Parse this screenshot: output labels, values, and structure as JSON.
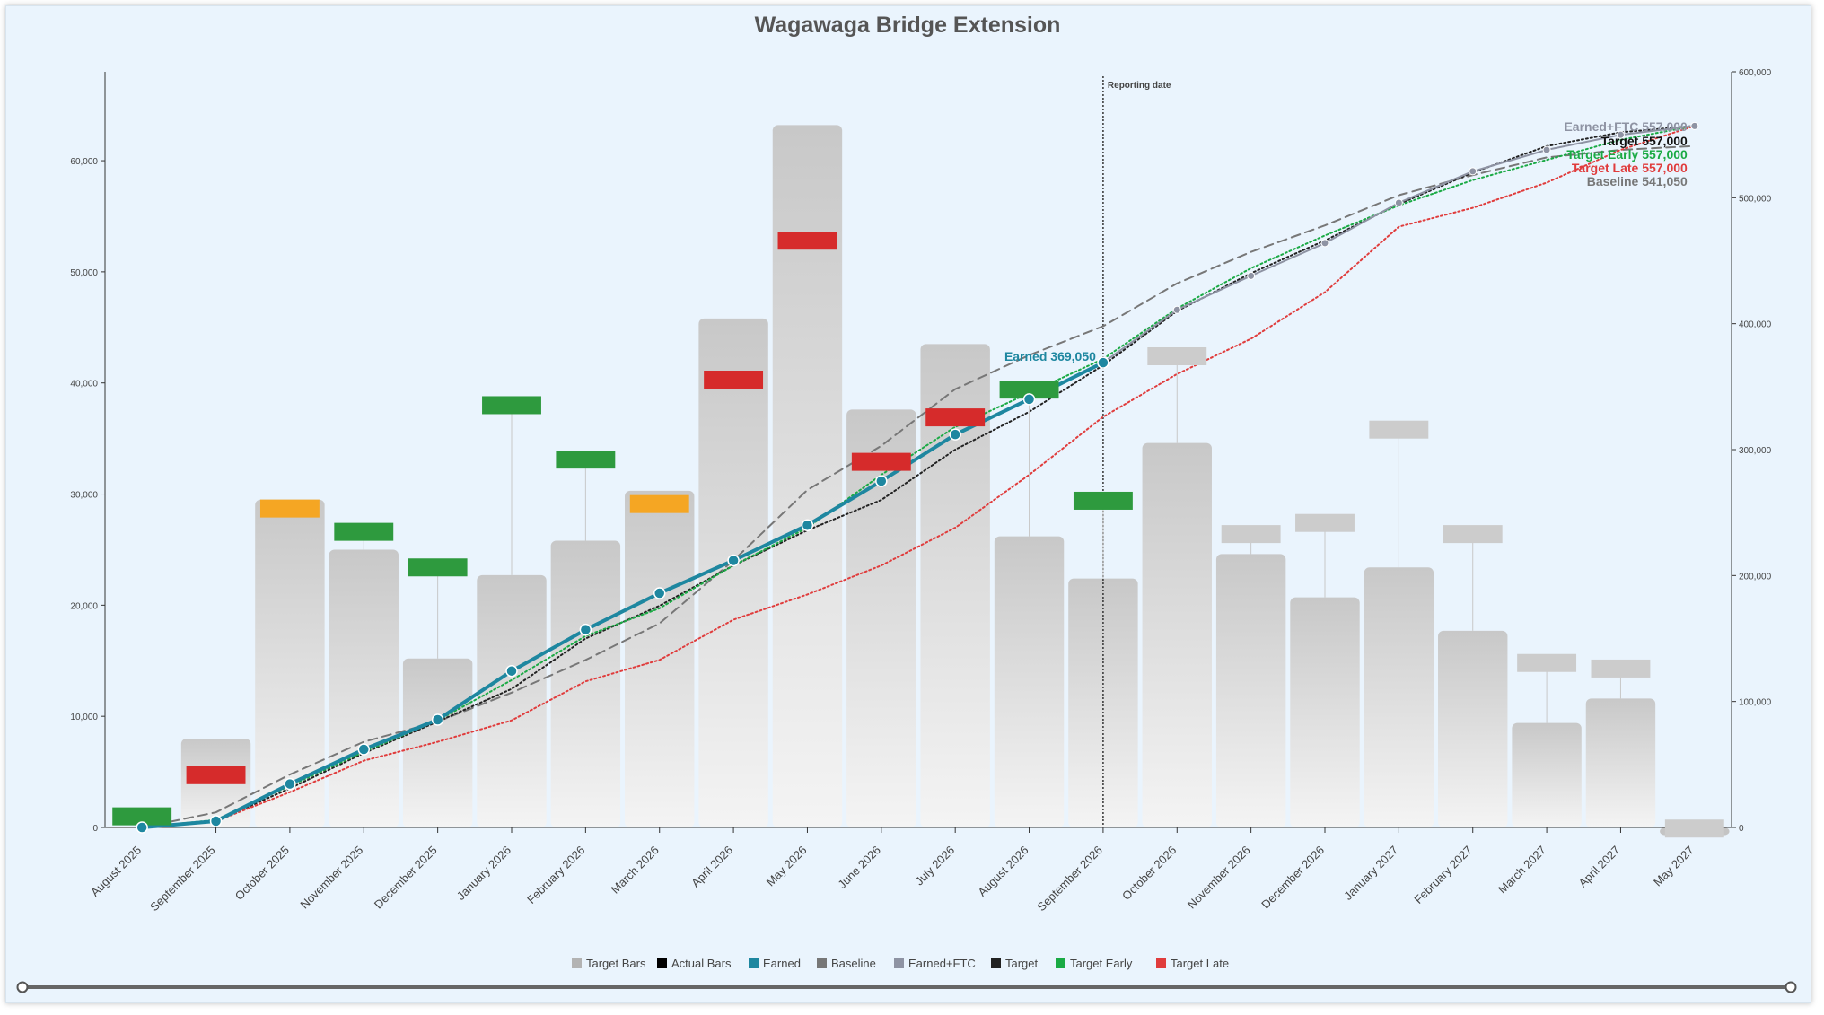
{
  "chart_data": {
    "type": "bar",
    "title": "Wagawaga Bridge Extension",
    "categories": [
      "August 2025",
      "September 2025",
      "October 2025",
      "November 2025",
      "December 2025",
      "January 2026",
      "February 2026",
      "March 2026",
      "April 2026",
      "May 2026",
      "June 2026",
      "July 2026",
      "August 2026",
      "September 2026",
      "October 2026",
      "November 2026",
      "December 2026",
      "January 2027",
      "February 2027",
      "March 2027",
      "April 2027",
      "May 2027"
    ],
    "y_left": {
      "range": [
        0,
        68000
      ],
      "ticks": [
        0,
        10000,
        20000,
        30000,
        40000,
        50000,
        60000
      ],
      "tick_labels": [
        "0",
        "10,000",
        "20,000",
        "30,000",
        "40,000",
        "50,000",
        "60,000"
      ]
    },
    "y_right": {
      "range": [
        0,
        600000
      ],
      "ticks": [
        0,
        100000,
        200000,
        300000,
        400000,
        500000,
        600000
      ],
      "tick_labels": [
        "0",
        "100,000",
        "200,000",
        "300,000",
        "400,000",
        "500,000",
        "600,000"
      ]
    },
    "bar_series": [
      {
        "name": "Target Bars",
        "color": "#b3b3b3",
        "values": [
          0,
          8000,
          29500,
          25000,
          15200,
          22700,
          25800,
          30300,
          45800,
          63200,
          37600,
          43500,
          26200,
          22400,
          34600,
          24600,
          20700,
          23400,
          17700,
          9400,
          11600,
          -700
        ]
      },
      {
        "name": "Actual Bars",
        "color": "#000000",
        "values": [
          1000,
          4700,
          28700,
          26600,
          23400,
          38000,
          33100,
          29100,
          40300,
          52800,
          32900,
          36900,
          39400,
          29400,
          42400,
          26400,
          27400,
          35800,
          26400,
          14800,
          14300,
          -100
        ],
        "marker_colors": [
          "#2e9a3e",
          "#d62b2b",
          "#f5a623",
          "#2e9a3e",
          "#2e9a3e",
          "#2e9a3e",
          "#2e9a3e",
          "#f5a623",
          "#d62b2b",
          "#d62b2b",
          "#d62b2b",
          "#d62b2b",
          "#2e9a3e",
          "#2e9a3e",
          "#cccccc",
          "#cccccc",
          "#cccccc",
          "#cccccc",
          "#cccccc",
          "#cccccc",
          "#cccccc",
          "#cccccc"
        ]
      }
    ],
    "line_series": [
      {
        "name": "Earned",
        "color": "#1e87a0",
        "style": "solid",
        "axis": "right",
        "values": [
          0,
          5000,
          34500,
          62000,
          85500,
          124200,
          157000,
          186000,
          212000,
          240000,
          275000,
          312000,
          340000,
          369050,
          null,
          null,
          null,
          null,
          null,
          null,
          null,
          null
        ]
      },
      {
        "name": "Baseline",
        "color": "#777777",
        "style": "dashed",
        "axis": "right",
        "values": [
          0,
          12000,
          42000,
          68000,
          84000,
          107000,
          133000,
          162000,
          212000,
          268000,
          303000,
          348000,
          375000,
          398000,
          432000,
          457000,
          478000,
          502000,
          518000,
          532000,
          538000,
          541050
        ]
      },
      {
        "name": "Earned+FTC",
        "color": "#8e93a3",
        "style": "solid",
        "axis": "right",
        "values": [
          null,
          null,
          null,
          null,
          null,
          null,
          null,
          null,
          null,
          null,
          null,
          null,
          null,
          369050,
          411000,
          438000,
          464000,
          496000,
          521000,
          538000,
          550000,
          557000
        ]
      },
      {
        "name": "Target",
        "color": "#222222",
        "style": "dotted",
        "axis": "right",
        "values": [
          0,
          5000,
          31000,
          59000,
          84000,
          110000,
          150000,
          176000,
          208000,
          236000,
          260000,
          300000,
          330000,
          367000,
          410000,
          440000,
          466000,
          495000,
          520000,
          541000,
          552000,
          557000
        ]
      },
      {
        "name": "Target Early",
        "color": "#1aaa44",
        "style": "dotted",
        "axis": "right",
        "values": [
          0,
          6000,
          33000,
          60000,
          85000,
          117000,
          152000,
          174000,
          208000,
          238000,
          280000,
          318000,
          345000,
          372000,
          412000,
          444000,
          470000,
          494000,
          514000,
          530000,
          546000,
          557000
        ]
      },
      {
        "name": "Target Late",
        "color": "#e03c3c",
        "style": "dotted",
        "axis": "right",
        "values": [
          0,
          5000,
          28000,
          53000,
          68000,
          85000,
          116000,
          133000,
          165000,
          185000,
          208000,
          238000,
          280000,
          326000,
          360000,
          388000,
          425000,
          477000,
          492000,
          512000,
          538000,
          557000
        ]
      }
    ],
    "annotations": [
      {
        "text": "Reporting date",
        "category_index": 13.5
      },
      {
        "text": "Earned 369,050",
        "color": "#1e87a0"
      },
      {
        "text": "Earned+FTC 557,000",
        "color": "#8e93a3"
      },
      {
        "text": "Target 557,000",
        "color": "#111111"
      },
      {
        "text": "Target Early 557,000",
        "color": "#1aaa44"
      },
      {
        "text": "Target Late 557,000",
        "color": "#e03c3c"
      },
      {
        "text": "Baseline 541,050",
        "color": "#777777"
      }
    ],
    "legend": {
      "placement": "bottom",
      "items": [
        {
          "name": "Target Bars",
          "color": "#b3b3b3"
        },
        {
          "name": "Actual Bars",
          "color": "#000000"
        },
        {
          "name": "Earned",
          "color": "#1e87a0"
        },
        {
          "name": "Baseline",
          "color": "#777777"
        },
        {
          "name": "Earned+FTC",
          "color": "#8e93a3"
        },
        {
          "name": "Target",
          "color": "#222222"
        },
        {
          "name": "Target Early",
          "color": "#1aaa44"
        },
        {
          "name": "Target Late",
          "color": "#e03c3c"
        }
      ]
    },
    "grid": false
  }
}
